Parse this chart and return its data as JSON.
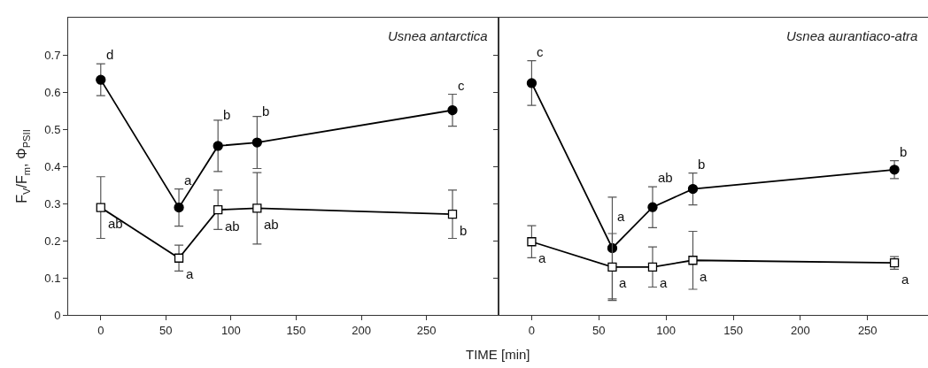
{
  "chart_data": [
    {
      "type": "line",
      "title": "Usnea antarctica",
      "ylabel": "F$_{V}$/F$_{m}$, Φ$_{PSII}$",
      "xlim": [
        -25,
        305
      ],
      "xticks": [
        0,
        50,
        100,
        150,
        200,
        250
      ],
      "ylim": [
        0,
        0.8
      ],
      "yticks": [
        0,
        0.1,
        0.2,
        0.3,
        0.4,
        0.5,
        0.6,
        0.7
      ],
      "grid": false,
      "line_style": "solid",
      "x": [
        0,
        60,
        90,
        120,
        270
      ],
      "series": [
        {
          "color": "#000000",
          "marker": "circle",
          "values": [
            0.633,
            0.289,
            0.455,
            0.464,
            0.551
          ],
          "errors": [
            0.043,
            0.05,
            0.069,
            0.07,
            0.043
          ]
        },
        {
          "color": "#000000",
          "marker": "square",
          "values": [
            0.289,
            0.153,
            0.283,
            0.287,
            0.271
          ],
          "errors": [
            0.083,
            0.035,
            0.053,
            0.096,
            0.065
          ]
        }
      ],
      "annotations": [
        {
          "text": "d",
          "x": 0,
          "y": 0.633
        },
        {
          "text": "a",
          "x": 60,
          "y": 0.289
        },
        {
          "text": "b",
          "x": 90,
          "y": 0.455
        },
        {
          "text": "b",
          "x": 120,
          "y": 0.464
        },
        {
          "text": "c",
          "x": 270,
          "y": 0.551
        },
        {
          "text": "ab",
          "x": 0,
          "y": 0.289
        },
        {
          "text": "a",
          "x": 60,
          "y": 0.153
        },
        {
          "text": "ab",
          "x": 90,
          "y": 0.283
        },
        {
          "text": "ab",
          "x": 120,
          "y": 0.287
        },
        {
          "text": "b",
          "x": 270,
          "y": 0.271
        }
      ]
    },
    {
      "type": "line",
      "title": "Usnea aurantiaco-atra",
      "xlabel": "TIME [min]",
      "xlim": [
        -25,
        295
      ],
      "xticks": [
        0,
        50,
        100,
        150,
        200,
        250
      ],
      "ylim": [
        0,
        0.8
      ],
      "yticks": [
        0,
        0.1,
        0.2,
        0.3,
        0.4,
        0.5,
        0.6,
        0.7
      ],
      "tick_labels": "x",
      "grid": false,
      "line_style": "solid",
      "x": [
        0,
        60,
        90,
        120,
        270
      ],
      "series": [
        {
          "color": "#000000",
          "marker": "circle",
          "values": [
            0.624,
            0.18,
            0.29,
            0.339,
            0.391
          ],
          "errors": [
            0.06,
            0.137,
            0.055,
            0.043,
            0.024
          ]
        },
        {
          "color": "#000000",
          "marker": "square",
          "values": [
            0.197,
            0.129,
            0.129,
            0.147,
            0.14
          ],
          "errors": [
            0.043,
            0.09,
            0.054,
            0.078,
            0.017
          ]
        }
      ],
      "annotations": [
        {
          "text": "c",
          "x": 0,
          "y": 0.624
        },
        {
          "text": "a",
          "x": 60,
          "y": 0.18
        },
        {
          "text": "ab",
          "x": 90,
          "y": 0.29
        },
        {
          "text": "b",
          "x": 120,
          "y": 0.339
        },
        {
          "text": "b",
          "x": 270,
          "y": 0.391
        },
        {
          "text": "a",
          "x": 0,
          "y": 0.197
        },
        {
          "text": "a",
          "x": 60,
          "y": 0.129
        },
        {
          "text": "a",
          "x": 90,
          "y": 0.129
        },
        {
          "text": "a",
          "x": 120,
          "y": 0.147
        },
        {
          "text": "a",
          "x": 270,
          "y": 0.14
        }
      ]
    }
  ]
}
